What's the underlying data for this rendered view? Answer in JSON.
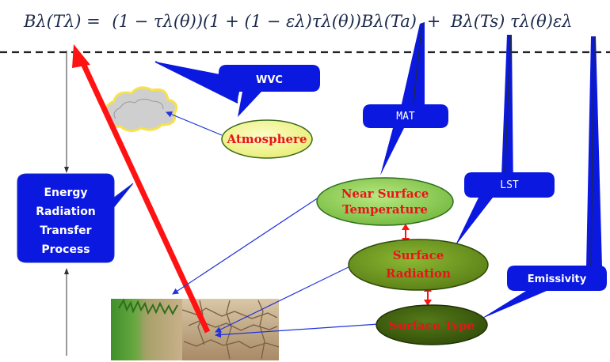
{
  "equation": {
    "lhs": "Bλ(Tλ) =",
    "term1": "(1 − τλ(θ))(1 + (1 − ελ)τλ(θ))Bλ(Ta)",
    "plus": "+",
    "term2": "Bλ(Ts)  τλ(θ)ελ"
  },
  "callouts": {
    "wvc": "WVC",
    "mat": "MAT",
    "lst": "LST",
    "emissivity": "Emissivity"
  },
  "nodes": {
    "atmosphere": "Atmosphere",
    "near_surface_line1": "Near Surface",
    "near_surface_line2": "Temperature",
    "surface_radiation_line1": "Surface",
    "surface_radiation_line2": "Radiation",
    "surface_type": "Surface Type"
  },
  "process_box": {
    "line1": "Energy",
    "line2": "Radiation",
    "line3": "Transfer",
    "line4": "Process"
  },
  "colors": {
    "callout_blue": "#0a18e0",
    "arrow_red": "#ff1212",
    "connector_blue": "#2233dd",
    "atmosphere_fill": "#f4f79a",
    "near_surface_fill": "#8fd14f",
    "surface_radiation_fill": "#6c8f1e",
    "surface_type_fill": "#3e5a0f",
    "label_red": "#e8141a"
  }
}
